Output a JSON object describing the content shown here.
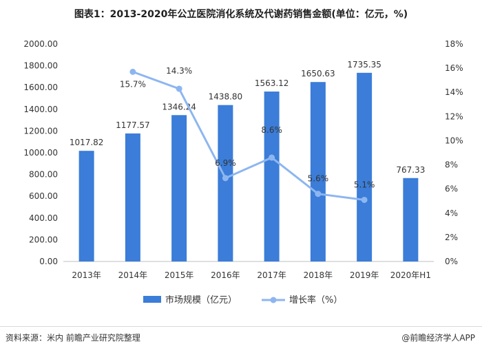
{
  "title": "图表1：2013-2020年公立医院消化系统及代谢药销售金额(单位：亿元，%)",
  "source": "资料来源：米内 前瞻产业研究院整理",
  "brand": "@前瞻经济学人APP",
  "colors": {
    "bar": "#3b7dd8",
    "line": "#8db6f0",
    "axis": "#333333",
    "grid": "#ffffff"
  },
  "chart_data": {
    "type": "bar",
    "categories": [
      "2013年",
      "2014年",
      "2015年",
      "2016年",
      "2017年",
      "2018年",
      "2019年",
      "2020年H1"
    ],
    "series": [
      {
        "name": "市场规模（亿元）",
        "type": "bar",
        "axis": "left",
        "values": [
          1017.82,
          1177.57,
          1346.24,
          1438.8,
          1563.12,
          1650.63,
          1735.35,
          767.33
        ],
        "labels": [
          "1017.82",
          "1177.57",
          "1346.24",
          "1438.80",
          "1563.12",
          "1650.63",
          "1735.35",
          "767.33"
        ]
      },
      {
        "name": "增长率（%）",
        "type": "line",
        "axis": "right",
        "values": [
          null,
          15.7,
          14.3,
          6.9,
          8.6,
          5.6,
          5.1,
          null
        ],
        "labels": [
          "",
          "15.7%",
          "14.3%",
          "6.9%",
          "8.6%",
          "5.6%",
          "5.1%",
          ""
        ]
      }
    ],
    "ylim_left": [
      0,
      2000
    ],
    "yticks_left": [
      "0.00",
      "200.00",
      "400.00",
      "600.00",
      "800.00",
      "1000.00",
      "1200.00",
      "1400.00",
      "1600.00",
      "1800.00",
      "2000.00"
    ],
    "ylim_right": [
      0,
      18
    ],
    "yticks_right": [
      "0%",
      "2%",
      "4%",
      "6%",
      "8%",
      "10%",
      "12%",
      "14%",
      "16%",
      "18%"
    ],
    "legend_position": "bottom",
    "grid": false
  }
}
